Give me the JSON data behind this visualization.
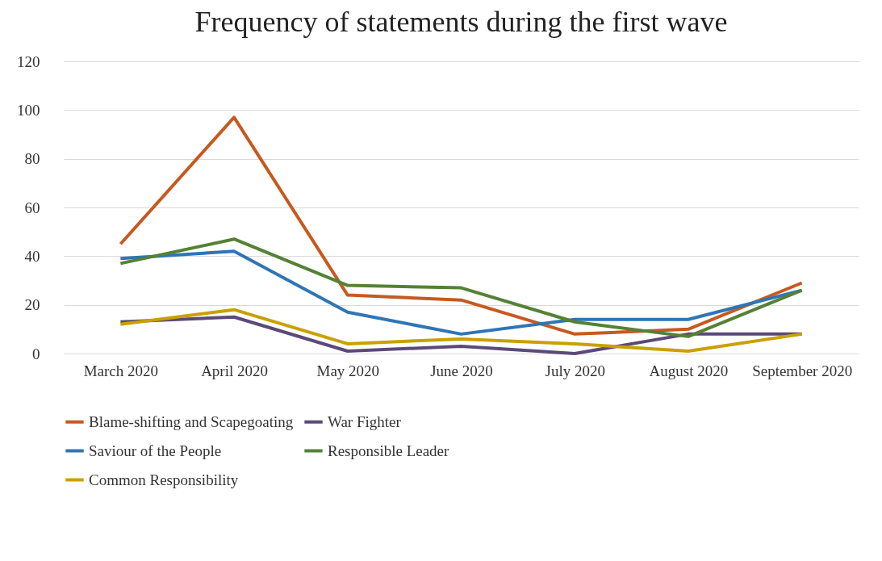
{
  "chart_data": {
    "type": "line",
    "title": "Frequency of statements during the first wave",
    "categories": [
      "March 2020",
      "April 2020",
      "May 2020",
      "June 2020",
      "July 2020",
      "August 2020",
      "September 2020"
    ],
    "series": [
      {
        "name": "Blame-shifting and Scapegoating",
        "color": "#c65a1e",
        "values": [
          45,
          97,
          24,
          22,
          8,
          10,
          29
        ]
      },
      {
        "name": "War Fighter",
        "color": "#5b4a78",
        "values": [
          13,
          15,
          1,
          3,
          0,
          8,
          8
        ]
      },
      {
        "name": "Saviour of the People",
        "color": "#2e75b6",
        "values": [
          39,
          42,
          17,
          8,
          14,
          14,
          26
        ]
      },
      {
        "name": "Responsible Leader",
        "color": "#548235",
        "values": [
          37,
          47,
          28,
          27,
          13,
          7,
          26
        ]
      },
      {
        "name": "Common Responsibility",
        "color": "#c9a000",
        "values": [
          12,
          18,
          4,
          6,
          4,
          1,
          8
        ]
      }
    ],
    "ylim": [
      0,
      120
    ],
    "yticks": [
      0,
      20,
      40,
      60,
      80,
      100,
      120
    ],
    "grid": "y",
    "legend": "bottom",
    "marker": "none",
    "line_style": "solid"
  }
}
